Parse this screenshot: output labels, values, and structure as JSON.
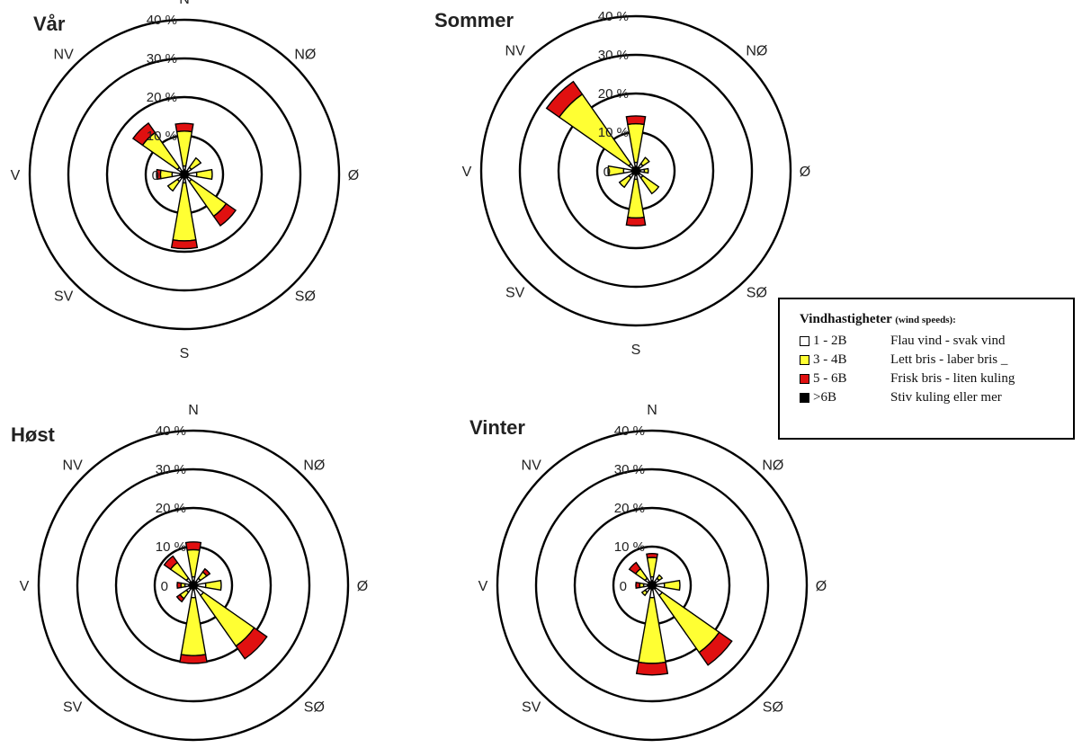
{
  "colors": {
    "light": "#ffffff",
    "moderate": "#ffff33",
    "fresh": "#e01010",
    "strong": "#000000"
  },
  "legend": {
    "title": "Vindhastigheter",
    "subtitle": "(wind speeds):",
    "items": [
      {
        "code": "1 - 2B",
        "label": "Flau vind - svak vind",
        "color": "#ffffff"
      },
      {
        "code": "3 - 4B",
        "label": "Lett bris - laber bris _",
        "color": "#ffff33"
      },
      {
        "code": "5 - 6B",
        "label": "Frisk bris - liten kuling",
        "color": "#e01010"
      },
      {
        "code": ">6B",
        "label": "Stiv kuling eller mer",
        "color": "#000000"
      }
    ]
  },
  "chart_data": [
    {
      "type": "wind-rose",
      "title": "Vår",
      "directions": [
        "N",
        "NØ",
        "Ø",
        "SØ",
        "S",
        "SV",
        "V",
        "NV"
      ],
      "ring_labels": [
        "0",
        "10 %",
        "20 %",
        "30 %",
        "40 %"
      ],
      "rmax": 40,
      "series": [
        {
          "name": "1 - 2B",
          "values": [
            1,
            1,
            2,
            1,
            1,
            1,
            2,
            1
          ]
        },
        {
          "name": "3 - 4B",
          "values": [
            9,
            3,
            4,
            11,
            15,
            3,
            3,
            11
          ]
        },
        {
          "name": "5 - 6B",
          "values": [
            2,
            0,
            0,
            3,
            2,
            0,
            1,
            3
          ]
        },
        {
          "name": ">6B",
          "values": [
            0,
            0,
            0,
            0,
            0,
            0,
            0,
            0
          ]
        }
      ]
    },
    {
      "type": "wind-rose",
      "title": "Sommer",
      "directions": [
        "N",
        "NØ",
        "Ø",
        "SØ",
        "S",
        "SV",
        "V",
        "NV"
      ],
      "ring_labels": [
        "0",
        "10 %",
        "20 %",
        "30 %",
        "40 %"
      ],
      "rmax": 40,
      "series": [
        {
          "name": "1 - 2B",
          "values": [
            1,
            1,
            1,
            1,
            1,
            1,
            2,
            1
          ]
        },
        {
          "name": "3 - 4B",
          "values": [
            10,
            2,
            1,
            5,
            10,
            3,
            4,
            22
          ]
        },
        {
          "name": "5 - 6B",
          "values": [
            2,
            0,
            0,
            0,
            2,
            0,
            0,
            4
          ]
        },
        {
          "name": ">6B",
          "values": [
            0,
            0,
            0,
            0,
            0,
            0,
            0,
            0
          ]
        }
      ]
    },
    {
      "type": "wind-rose",
      "title": "Høst",
      "directions": [
        "N",
        "NØ",
        "Ø",
        "SØ",
        "S",
        "SV",
        "V",
        "NV"
      ],
      "ring_labels": [
        "0",
        "10 %",
        "20 %",
        "30 %",
        "40 %"
      ],
      "rmax": 40,
      "series": [
        {
          "name": "1 - 2B",
          "values": [
            1,
            1,
            2,
            2,
            2,
            1,
            1,
            1
          ]
        },
        {
          "name": "3 - 4B",
          "values": [
            7,
            2,
            4,
            16,
            15,
            2,
            1,
            5
          ]
        },
        {
          "name": "5 - 6B",
          "values": [
            2,
            1,
            0,
            4,
            2,
            1,
            1,
            2
          ]
        },
        {
          "name": ">6B",
          "values": [
            0,
            0,
            0,
            0,
            0,
            0,
            0,
            0
          ]
        }
      ]
    },
    {
      "type": "wind-rose",
      "title": "Vinter",
      "directions": [
        "N",
        "NØ",
        "Ø",
        "SØ",
        "S",
        "SV",
        "V",
        "NV"
      ],
      "ring_labels": [
        "0",
        "10 %",
        "20 %",
        "30 %",
        "40 %"
      ],
      "rmax": 40,
      "series": [
        {
          "name": "1 - 2B",
          "values": [
            1,
            1,
            2,
            2,
            2,
            1,
            1,
            1
          ]
        },
        {
          "name": "3 - 4B",
          "values": [
            5,
            1,
            4,
            18,
            17,
            1,
            1,
            3
          ]
        },
        {
          "name": "5 - 6B",
          "values": [
            1,
            0,
            0,
            4,
            3,
            0,
            1,
            2
          ]
        },
        {
          "name": ">6B",
          "values": [
            0,
            0,
            0,
            0,
            0,
            0,
            0,
            0
          ]
        }
      ]
    }
  ]
}
